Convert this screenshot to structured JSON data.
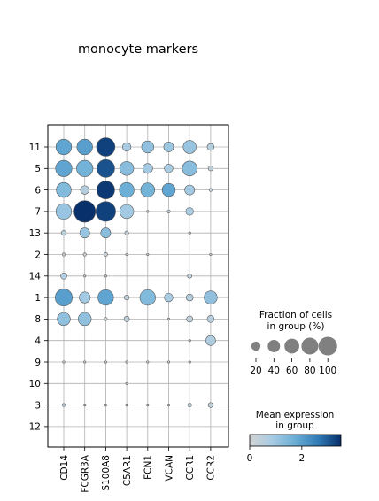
{
  "title": "monocyte markers",
  "chart_data": {
    "type": "dotplot",
    "title": "monocyte markers",
    "genes": [
      "CD14",
      "FCGR3A",
      "S100A8",
      "C5AR1",
      "FCN1",
      "VCAN",
      "CCR1",
      "CCR2"
    ],
    "groups": [
      "11",
      "5",
      "6",
      "7",
      "13",
      "2",
      "14",
      "1",
      "8",
      "4",
      "9",
      "10",
      "3",
      "12"
    ],
    "grid": true,
    "fraction_pct": [
      [
        50,
        50,
        70,
        15,
        30,
        20,
        35,
        10
      ],
      [
        55,
        55,
        65,
        40,
        20,
        15,
        45,
        5
      ],
      [
        45,
        15,
        65,
        45,
        40,
        35,
        20,
        2
      ],
      [
        50,
        95,
        80,
        40,
        1,
        2,
        12,
        0
      ],
      [
        5,
        20,
        20,
        3,
        0,
        0,
        1,
        0
      ],
      [
        2,
        2,
        3,
        1,
        1,
        0,
        0,
        1
      ],
      [
        8,
        1,
        1,
        0,
        0,
        0,
        4,
        0
      ],
      [
        60,
        25,
        50,
        5,
        50,
        15,
        10,
        35
      ],
      [
        35,
        35,
        2,
        6,
        0,
        1,
        8,
        10
      ],
      [
        0,
        0,
        0,
        0,
        0,
        0,
        1,
        20
      ],
      [
        1,
        1,
        1,
        1,
        1,
        1,
        1,
        0
      ],
      [
        0,
        0,
        0,
        1,
        0,
        0,
        0,
        0
      ],
      [
        2,
        1,
        1,
        1,
        1,
        1,
        3,
        5
      ],
      [
        0,
        0,
        0,
        0,
        0,
        0,
        0,
        0
      ]
    ],
    "mean_expression": [
      [
        1.9,
        2.0,
        3.3,
        0.8,
        1.2,
        1.0,
        1.1,
        0.6
      ],
      [
        1.9,
        1.6,
        3.1,
        1.3,
        0.9,
        0.8,
        1.3,
        0.4
      ],
      [
        1.4,
        0.6,
        3.4,
        1.7,
        1.6,
        1.9,
        0.9,
        0.3
      ],
      [
        1.1,
        3.5,
        3.3,
        0.9,
        0.2,
        0.3,
        0.8,
        0.2
      ],
      [
        0.5,
        1.1,
        1.3,
        0.3,
        0.2,
        0.2,
        0.2,
        0.2
      ],
      [
        0.3,
        0.3,
        0.3,
        0.2,
        0.2,
        0.2,
        0.2,
        0.2
      ],
      [
        0.6,
        0.2,
        0.2,
        0.2,
        0.2,
        0.2,
        0.4,
        0.2
      ],
      [
        2.0,
        0.9,
        1.9,
        0.4,
        1.4,
        0.8,
        0.6,
        1.2
      ],
      [
        1.2,
        1.2,
        0.3,
        0.4,
        0.2,
        0.2,
        0.4,
        0.5
      ],
      [
        0.2,
        0.2,
        0.2,
        0.2,
        0.2,
        0.2,
        0.3,
        0.7
      ],
      [
        0.3,
        0.3,
        0.3,
        0.3,
        0.3,
        0.3,
        0.3,
        0.2
      ],
      [
        0.2,
        0.2,
        0.2,
        0.3,
        0.2,
        0.2,
        0.2,
        0.2
      ],
      [
        0.4,
        0.3,
        0.3,
        0.3,
        0.3,
        0.3,
        0.4,
        0.4
      ],
      [
        0.2,
        0.2,
        0.2,
        0.2,
        0.2,
        0.2,
        0.2,
        0.2
      ]
    ],
    "size_legend": {
      "title_line1": "Fraction of cells",
      "title_line2": "in group (%)",
      "values": [
        20,
        40,
        60,
        80,
        100
      ],
      "labels": [
        "20",
        "40",
        "60",
        "80",
        "100"
      ],
      "color": "#808080"
    },
    "color_legend": {
      "title_line1": "Mean expression",
      "title_line2": "in group",
      "range": [
        0,
        3.5
      ],
      "ticks": [
        0,
        2
      ],
      "tick_labels": [
        "0",
        "2"
      ],
      "cmap_stops": [
        "#d3d3d3",
        "#a6cbe3",
        "#6aaed6",
        "#2f7bb6",
        "#08306b"
      ]
    }
  }
}
